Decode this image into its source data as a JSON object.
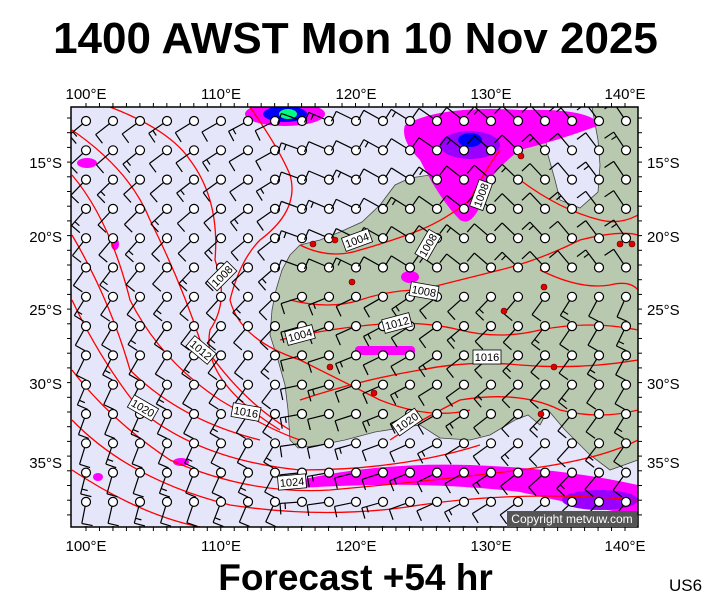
{
  "title": "1400 AWST Mon 10 Nov 2025",
  "footer": "Forecast +54 hr",
  "model_code": "US6",
  "copyright": "Copyright metvuw.com",
  "map": {
    "lon_labels": [
      "100°E",
      "110°E",
      "120°E",
      "130°E",
      "140°E"
    ],
    "lat_labels": [
      "15°S",
      "20°S",
      "25°S",
      "30°S",
      "35°S"
    ],
    "isobar_labels": [
      "1004",
      "1008",
      "1008",
      "1012",
      "1004",
      "1008",
      "1012",
      "1016",
      "1020",
      "1016",
      "1020",
      "1024",
      "1008"
    ],
    "colors": {
      "ocean": "#e6e6fa",
      "land": "#b8c9b0",
      "isobar": "#ff0000",
      "rain_light": "#ff00ff",
      "rain_mid": "#9900ff",
      "rain_heavy": "#0000ff",
      "rain_extreme": "#00ff80",
      "low_marker": "#e00000"
    }
  }
}
